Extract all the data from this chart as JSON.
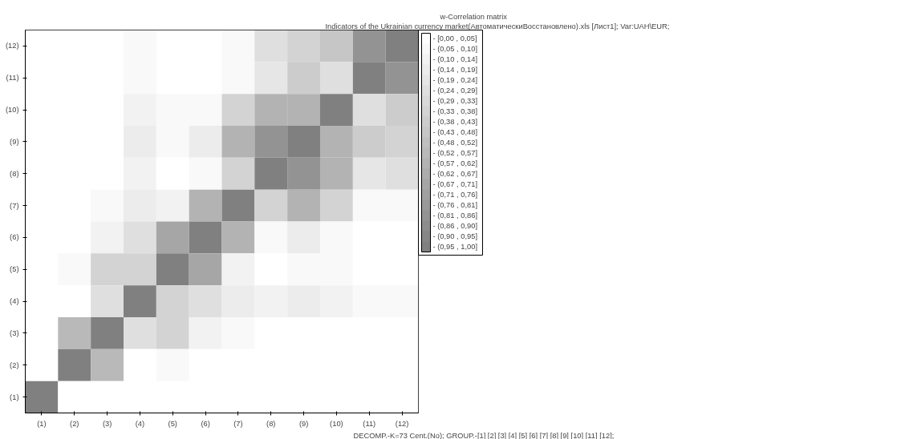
{
  "chart_data": {
    "type": "heatmap",
    "title": "w-Correlation matrix",
    "subtitle": "Indicators of the Ukrainian currency market(АвтоматическиВосстановлено).xls [Лист1];     Var:UAH\\EUR;",
    "annotations": [
      "DECOMP.-K=73 Cent.(No);     GROUP.-[1] [2] [3] [4] [5] [6] [7] [8] [9] [10] [11] [12];"
    ],
    "categories": [
      "(1)",
      "(2)",
      "(3)",
      "(4)",
      "(5)",
      "(6)",
      "(7)",
      "(8)",
      "(9)",
      "(10)",
      "(11)",
      "(12)"
    ],
    "y_categories": [
      "(12)",
      "(11)",
      "(10)",
      "(9)",
      "(8)",
      "(7)",
      "(6)",
      "(5)",
      "(4)",
      "(3)",
      "(2)",
      "(1)"
    ],
    "cells": [
      [
        0.02,
        0.02,
        0.02,
        0.07,
        0.02,
        0.02,
        0.07,
        0.26,
        0.35,
        0.45,
        0.84,
        1.0
      ],
      [
        0.02,
        0.02,
        0.02,
        0.07,
        0.02,
        0.02,
        0.07,
        0.21,
        0.4,
        0.26,
        1.0,
        0.84
      ],
      [
        0.02,
        0.02,
        0.02,
        0.12,
        0.07,
        0.07,
        0.35,
        0.61,
        0.61,
        1.0,
        0.26,
        0.4
      ],
      [
        0.02,
        0.02,
        0.02,
        0.16,
        0.07,
        0.16,
        0.61,
        0.84,
        1.0,
        0.61,
        0.4,
        0.35
      ],
      [
        0.02,
        0.02,
        0.02,
        0.12,
        0.02,
        0.07,
        0.35,
        1.0,
        0.84,
        0.61,
        0.21,
        0.26
      ],
      [
        0.02,
        0.02,
        0.07,
        0.16,
        0.12,
        0.61,
        1.0,
        0.35,
        0.61,
        0.35,
        0.07,
        0.07
      ],
      [
        0.02,
        0.02,
        0.12,
        0.26,
        0.69,
        1.0,
        0.61,
        0.07,
        0.16,
        0.07,
        0.02,
        0.02
      ],
      [
        0.02,
        0.07,
        0.35,
        0.35,
        1.0,
        0.69,
        0.12,
        0.02,
        0.07,
        0.07,
        0.02,
        0.02
      ],
      [
        0.02,
        0.02,
        0.26,
        1.0,
        0.35,
        0.26,
        0.16,
        0.12,
        0.16,
        0.12,
        0.07,
        0.07
      ],
      [
        0.02,
        0.55,
        1.0,
        0.26,
        0.35,
        0.12,
        0.07,
        0.02,
        0.02,
        0.02,
        0.02,
        0.02
      ],
      [
        0.02,
        1.0,
        0.55,
        0.02,
        0.07,
        0.02,
        0.02,
        0.02,
        0.02,
        0.02,
        0.02,
        0.02
      ],
      [
        1.0,
        0.02,
        0.02,
        0.02,
        0.02,
        0.02,
        0.02,
        0.02,
        0.02,
        0.02,
        0.02,
        0.02
      ]
    ],
    "clim": [
      0,
      1
    ],
    "cticks": [
      {
        "value": 0.024,
        "label": "- [0,00 , 0,05]"
      },
      {
        "value": 0.071,
        "label": "- (0,05 , 0,10]"
      },
      {
        "value": 0.119,
        "label": "- (0,10 , 0,14]"
      },
      {
        "value": 0.167,
        "label": "- (0,14 , 0,19]"
      },
      {
        "value": 0.214,
        "label": "- (0,19 , 0,24]"
      },
      {
        "value": 0.262,
        "label": "- (0,24 , 0,29]"
      },
      {
        "value": 0.31,
        "label": "- (0,29 , 0,33]"
      },
      {
        "value": 0.357,
        "label": "- (0,33 , 0,38]"
      },
      {
        "value": 0.405,
        "label": "- (0,38 , 0,43]"
      },
      {
        "value": 0.452,
        "label": "- (0,43 , 0,48]"
      },
      {
        "value": 0.5,
        "label": "- (0,48 , 0,52]"
      },
      {
        "value": 0.548,
        "label": "- (0,52 , 0,57]"
      },
      {
        "value": 0.595,
        "label": "- (0,57 , 0,62]"
      },
      {
        "value": 0.643,
        "label": "- (0,62 , 0,67]"
      },
      {
        "value": 0.69,
        "label": "- (0,67 , 0,71]"
      },
      {
        "value": 0.738,
        "label": "- (0,71 , 0,76]"
      },
      {
        "value": 0.786,
        "label": "- (0,76 , 0,81]"
      },
      {
        "value": 0.833,
        "label": "- (0,81 , 0,86]"
      },
      {
        "value": 0.881,
        "label": "- (0,86 , 0,90]"
      },
      {
        "value": 0.929,
        "label": "- (0,90 , 0,95]"
      },
      {
        "value": 0.976,
        "label": "- (0,95 , 1,00]"
      }
    ],
    "colors": [
      "#ffffff",
      "#f9f9f9",
      "#f2f2f2",
      "#ececec",
      "#e6e6e6",
      "#dfdfdf",
      "#d9d9d9",
      "#d3d3d3",
      "#cccccc",
      "#c6c6c6",
      "#bfbfbf",
      "#b9b9b9",
      "#b3b3b3",
      "#acacac",
      "#a6a6a6",
      "#a0a0a0",
      "#999999",
      "#939393",
      "#8d8d8d",
      "#868686",
      "#808080"
    ],
    "grid": false
  }
}
